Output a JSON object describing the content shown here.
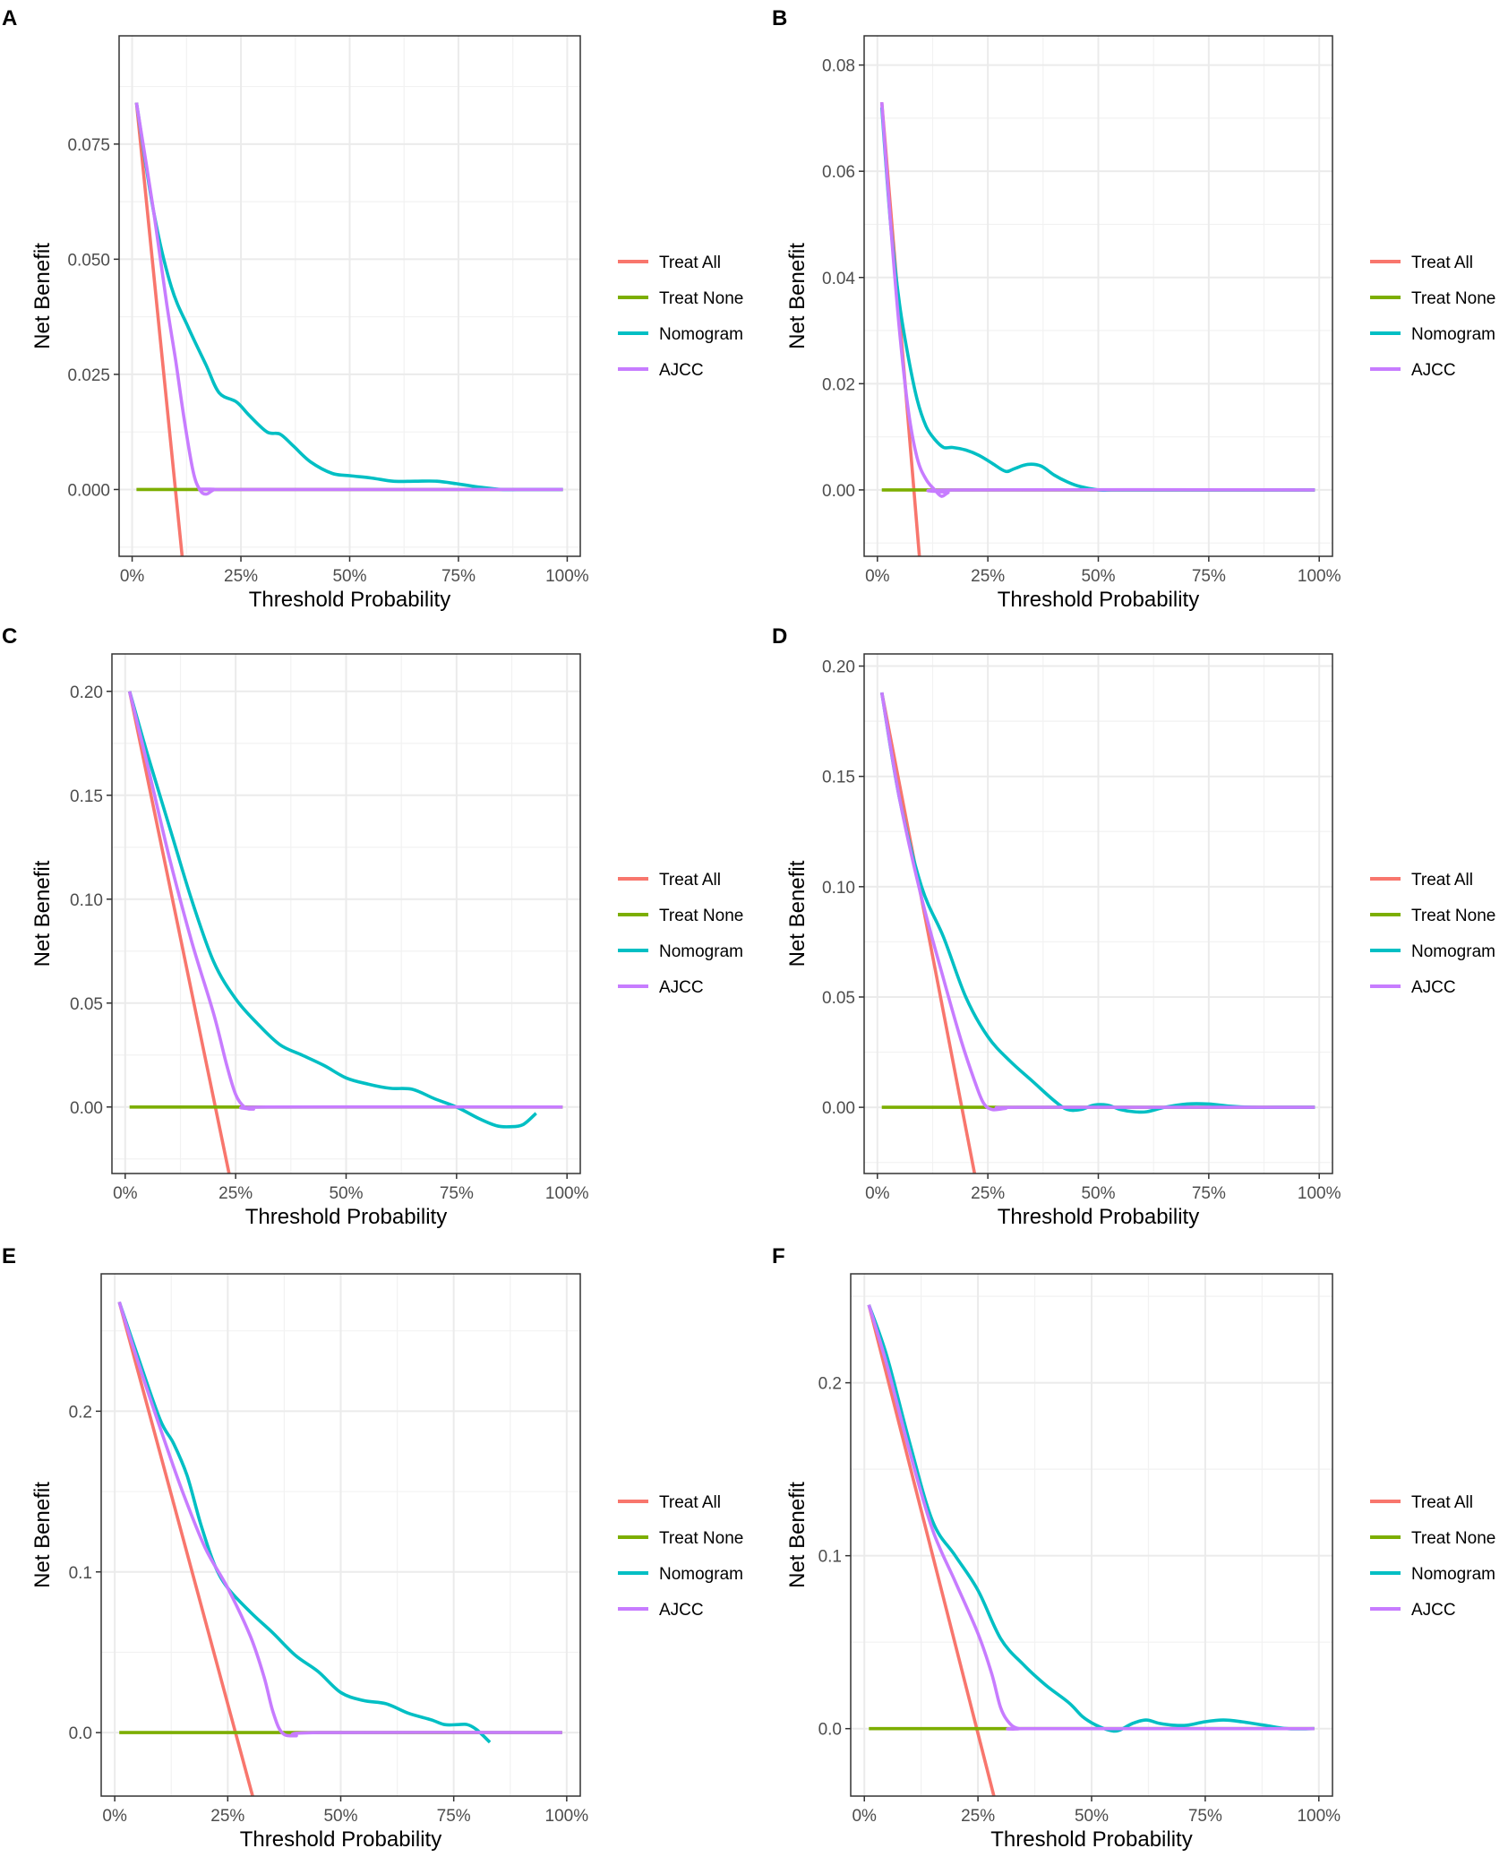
{
  "colors": {
    "treat_all": "#F8766D",
    "treat_none": "#7CAE00",
    "nomogram": "#00BFC4",
    "ajcc": "#C77CFF"
  },
  "chart_data": [
    {
      "panel": "A",
      "type": "line",
      "xlabel": "Threshold Probability",
      "ylabel": "Net Benefit",
      "xlim": [
        -0.03,
        1.03
      ],
      "ylim": [
        -0.0145,
        0.0985
      ],
      "xticks": [
        0,
        0.25,
        0.5,
        0.75,
        1.0
      ],
      "xtick_labels": [
        "0%",
        "25%",
        "50%",
        "75%",
        "100%"
      ],
      "yticks": [
        0,
        0.025,
        0.05,
        0.075
      ],
      "ytick_labels": [
        "0.000",
        "0.025",
        "0.050",
        "0.075"
      ],
      "legend": [
        "Treat All",
        "Treat None",
        "Nomogram",
        "AJCC"
      ],
      "series": [
        {
          "name": "Treat All",
          "x": [
            0.01,
            0.115
          ],
          "y": [
            0.084,
            -0.0145
          ]
        },
        {
          "name": "Treat None",
          "x": [
            0.01,
            0.99
          ],
          "y": [
            0,
            0
          ]
        },
        {
          "name": "Nomogram",
          "x": [
            0.01,
            0.05,
            0.09,
            0.13,
            0.17,
            0.2,
            0.24,
            0.27,
            0.31,
            0.34,
            0.37,
            0.41,
            0.46,
            0.5,
            0.55,
            0.6,
            0.65,
            0.7,
            0.75,
            0.8,
            0.85,
            0.9,
            0.95,
            0.99
          ],
          "y": [
            0.084,
            0.06,
            0.044,
            0.035,
            0.027,
            0.021,
            0.019,
            0.016,
            0.0125,
            0.012,
            0.0095,
            0.006,
            0.0035,
            0.003,
            0.0025,
            0.0018,
            0.0018,
            0.0018,
            0.0012,
            0.0005,
            0,
            0,
            0,
            0
          ]
        },
        {
          "name": "AJCC",
          "x": [
            0.01,
            0.05,
            0.08,
            0.1,
            0.12,
            0.14,
            0.155,
            0.17,
            0.19,
            0.22,
            0.99
          ],
          "y": [
            0.084,
            0.06,
            0.04,
            0.028,
            0.015,
            0.004,
            0,
            -0.001,
            0,
            0,
            0
          ]
        }
      ]
    },
    {
      "panel": "B",
      "type": "line",
      "xlabel": "Threshold Probability",
      "ylabel": "Net Benefit",
      "xlim": [
        -0.03,
        1.03
      ],
      "ylim": [
        -0.0125,
        0.0855
      ],
      "xticks": [
        0,
        0.25,
        0.5,
        0.75,
        1.0
      ],
      "xtick_labels": [
        "0%",
        "25%",
        "50%",
        "75%",
        "100%"
      ],
      "yticks": [
        0,
        0.02,
        0.04,
        0.06,
        0.08
      ],
      "ytick_labels": [
        "0.00",
        "0.02",
        "0.04",
        "0.06",
        "0.08"
      ],
      "legend": [
        "Treat All",
        "Treat None",
        "Nomogram",
        "AJCC"
      ],
      "series": [
        {
          "name": "Treat All",
          "x": [
            0.01,
            0.095
          ],
          "y": [
            0.073,
            -0.0125
          ]
        },
        {
          "name": "Treat None",
          "x": [
            0.01,
            0.99
          ],
          "y": [
            0,
            0
          ]
        },
        {
          "name": "Nomogram",
          "x": [
            0.01,
            0.03,
            0.05,
            0.07,
            0.09,
            0.11,
            0.13,
            0.15,
            0.17,
            0.2,
            0.23,
            0.26,
            0.29,
            0.31,
            0.34,
            0.37,
            0.4,
            0.43,
            0.46,
            0.5,
            0.53,
            0.57,
            0.6,
            0.7,
            0.8,
            0.9,
            0.99
          ],
          "y": [
            0.072,
            0.05,
            0.035,
            0.025,
            0.017,
            0.012,
            0.0095,
            0.008,
            0.008,
            0.0075,
            0.0065,
            0.005,
            0.0035,
            0.004,
            0.0048,
            0.0045,
            0.0028,
            0.0015,
            0.0006,
            0,
            0,
            0,
            0,
            0,
            0,
            0,
            0
          ]
        },
        {
          "name": "AJCC",
          "x": [
            0.01,
            0.03,
            0.05,
            0.07,
            0.09,
            0.11,
            0.13,
            0.145,
            0.16,
            0.18,
            0.99
          ],
          "y": [
            0.073,
            0.05,
            0.03,
            0.015,
            0.006,
            0.002,
            0,
            -0.0012,
            -0.0005,
            0,
            0
          ]
        }
      ]
    },
    {
      "panel": "C",
      "type": "line",
      "xlabel": "Threshold Probability",
      "ylabel": "Net Benefit",
      "xlim": [
        -0.03,
        1.03
      ],
      "ylim": [
        -0.032,
        0.218
      ],
      "xticks": [
        0,
        0.25,
        0.5,
        0.75,
        1.0
      ],
      "xtick_labels": [
        "0%",
        "25%",
        "50%",
        "75%",
        "100%"
      ],
      "yticks": [
        0,
        0.05,
        0.1,
        0.15,
        0.2
      ],
      "ytick_labels": [
        "0.00",
        "0.05",
        "0.10",
        "0.15",
        "0.20"
      ],
      "legend": [
        "Treat All",
        "Treat None",
        "Nomogram",
        "AJCC"
      ],
      "series": [
        {
          "name": "Treat All",
          "x": [
            0.01,
            0.235
          ],
          "y": [
            0.2,
            -0.032
          ]
        },
        {
          "name": "Treat None",
          "x": [
            0.01,
            0.99
          ],
          "y": [
            0,
            0
          ]
        },
        {
          "name": "Nomogram",
          "x": [
            0.01,
            0.05,
            0.1,
            0.15,
            0.2,
            0.25,
            0.3,
            0.35,
            0.4,
            0.45,
            0.5,
            0.55,
            0.6,
            0.65,
            0.7,
            0.75,
            0.8,
            0.84,
            0.87,
            0.9,
            0.93
          ],
          "y": [
            0.2,
            0.17,
            0.135,
            0.1,
            0.07,
            0.052,
            0.04,
            0.03,
            0.025,
            0.02,
            0.014,
            0.011,
            0.009,
            0.0085,
            0.004,
            0,
            -0.0055,
            -0.009,
            -0.0095,
            -0.0085,
            -0.003
          ]
        },
        {
          "name": "AJCC",
          "x": [
            0.01,
            0.05,
            0.1,
            0.15,
            0.2,
            0.23,
            0.25,
            0.27,
            0.29,
            0.32,
            0.99
          ],
          "y": [
            0.2,
            0.165,
            0.12,
            0.08,
            0.045,
            0.02,
            0.006,
            0,
            -0.001,
            0,
            0
          ]
        }
      ]
    },
    {
      "panel": "D",
      "type": "line",
      "xlabel": "Threshold Probability",
      "ylabel": "Net Benefit",
      "xlim": [
        -0.03,
        1.03
      ],
      "ylim": [
        -0.03,
        0.2055
      ],
      "xticks": [
        0,
        0.25,
        0.5,
        0.75,
        1.0
      ],
      "xtick_labels": [
        "0%",
        "25%",
        "50%",
        "75%",
        "100%"
      ],
      "yticks": [
        0,
        0.05,
        0.1,
        0.15,
        0.2
      ],
      "ytick_labels": [
        "0.00",
        "0.05",
        "0.10",
        "0.15",
        "0.20"
      ],
      "legend": [
        "Treat All",
        "Treat None",
        "Nomogram",
        "AJCC"
      ],
      "series": [
        {
          "name": "Treat All",
          "x": [
            0.01,
            0.22
          ],
          "y": [
            0.188,
            -0.03
          ]
        },
        {
          "name": "Treat None",
          "x": [
            0.01,
            0.99
          ],
          "y": [
            0,
            0
          ]
        },
        {
          "name": "Nomogram",
          "x": [
            0.01,
            0.05,
            0.1,
            0.15,
            0.2,
            0.25,
            0.3,
            0.35,
            0.4,
            0.43,
            0.46,
            0.49,
            0.52,
            0.55,
            0.58,
            0.61,
            0.65,
            0.7,
            0.75,
            0.8,
            0.85,
            0.9,
            0.95,
            0.99
          ],
          "y": [
            0.188,
            0.14,
            0.1,
            0.077,
            0.05,
            0.032,
            0.021,
            0.012,
            0.003,
            -0.001,
            -0.001,
            0.001,
            0.001,
            -0.001,
            -0.002,
            -0.002,
            0,
            0.0015,
            0.0015,
            0.0005,
            0,
            0,
            0,
            0
          ]
        },
        {
          "name": "AJCC",
          "x": [
            0.01,
            0.05,
            0.1,
            0.15,
            0.19,
            0.22,
            0.24,
            0.26,
            0.29,
            0.33,
            0.99
          ],
          "y": [
            0.188,
            0.14,
            0.095,
            0.058,
            0.03,
            0.012,
            0.002,
            -0.001,
            -0.0005,
            0,
            0
          ]
        }
      ]
    },
    {
      "panel": "E",
      "type": "line",
      "xlabel": "Threshold Probability",
      "ylabel": "Net Benefit",
      "xlim": [
        -0.03,
        1.03
      ],
      "ylim": [
        -0.0395,
        0.2855
      ],
      "xticks": [
        0,
        0.25,
        0.5,
        0.75,
        1.0
      ],
      "xtick_labels": [
        "0%",
        "25%",
        "50%",
        "75%",
        "100%"
      ],
      "yticks": [
        0,
        0.1,
        0.2
      ],
      "ytick_labels": [
        "0.0",
        "0.1",
        "0.2"
      ],
      "legend": [
        "Treat All",
        "Treat None",
        "Nomogram",
        "AJCC"
      ],
      "series": [
        {
          "name": "Treat All",
          "x": [
            0.01,
            0.305
          ],
          "y": [
            0.268,
            -0.0395
          ]
        },
        {
          "name": "Treat None",
          "x": [
            0.01,
            0.99
          ],
          "y": [
            0,
            0
          ]
        },
        {
          "name": "Nomogram",
          "x": [
            0.01,
            0.05,
            0.1,
            0.13,
            0.16,
            0.19,
            0.22,
            0.25,
            0.3,
            0.35,
            0.4,
            0.45,
            0.5,
            0.55,
            0.6,
            0.65,
            0.7,
            0.73,
            0.76,
            0.78,
            0.8,
            0.83
          ],
          "y": [
            0.268,
            0.235,
            0.195,
            0.18,
            0.16,
            0.13,
            0.105,
            0.09,
            0.075,
            0.062,
            0.048,
            0.038,
            0.025,
            0.02,
            0.018,
            0.012,
            0.008,
            0.005,
            0.005,
            0.005,
            0.002,
            -0.006
          ]
        },
        {
          "name": "AJCC",
          "x": [
            0.01,
            0.05,
            0.1,
            0.15,
            0.2,
            0.25,
            0.3,
            0.33,
            0.35,
            0.37,
            0.4,
            0.45,
            0.99
          ],
          "y": [
            0.268,
            0.232,
            0.19,
            0.15,
            0.115,
            0.09,
            0.06,
            0.035,
            0.013,
            0,
            -0.002,
            0,
            0
          ]
        }
      ]
    },
    {
      "panel": "F",
      "type": "line",
      "xlabel": "Threshold Probability",
      "ylabel": "Net Benefit",
      "xlim": [
        -0.03,
        1.03
      ],
      "ylim": [
        -0.039,
        0.263
      ],
      "xticks": [
        0,
        0.25,
        0.5,
        0.75,
        1.0
      ],
      "xtick_labels": [
        "0%",
        "25%",
        "50%",
        "75%",
        "100%"
      ],
      "yticks": [
        0,
        0.1,
        0.2
      ],
      "ytick_labels": [
        "0.0",
        "0.1",
        "0.2"
      ],
      "legend": [
        "Treat All",
        "Treat None",
        "Nomogram",
        "AJCC"
      ],
      "series": [
        {
          "name": "Treat All",
          "x": [
            0.01,
            0.285
          ],
          "y": [
            0.245,
            -0.039
          ]
        },
        {
          "name": "Treat None",
          "x": [
            0.01,
            0.99
          ],
          "y": [
            0,
            0
          ]
        },
        {
          "name": "Nomogram",
          "x": [
            0.01,
            0.05,
            0.1,
            0.15,
            0.2,
            0.25,
            0.3,
            0.35,
            0.4,
            0.45,
            0.48,
            0.51,
            0.54,
            0.56,
            0.59,
            0.62,
            0.65,
            0.68,
            0.71,
            0.75,
            0.79,
            0.83,
            0.88,
            0.93,
            0.99
          ],
          "y": [
            0.245,
            0.215,
            0.165,
            0.12,
            0.1,
            0.08,
            0.052,
            0.037,
            0.025,
            0.015,
            0.007,
            0.002,
            -0.001,
            -0.001,
            0.003,
            0.005,
            0.003,
            0.002,
            0.002,
            0.004,
            0.005,
            0.004,
            0.002,
            0,
            0
          ]
        },
        {
          "name": "AJCC",
          "x": [
            0.01,
            0.05,
            0.1,
            0.15,
            0.2,
            0.25,
            0.28,
            0.3,
            0.32,
            0.34,
            0.37,
            0.99
          ],
          "y": [
            0.245,
            0.21,
            0.16,
            0.115,
            0.085,
            0.055,
            0.032,
            0.012,
            0.003,
            0,
            0,
            0
          ]
        }
      ]
    }
  ]
}
